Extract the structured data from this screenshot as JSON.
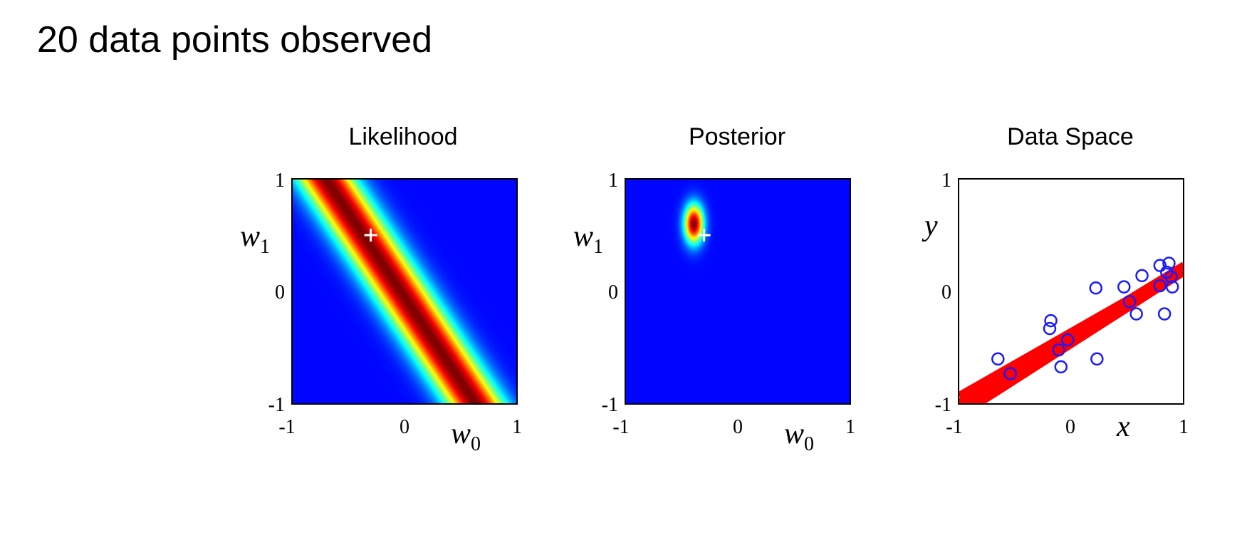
{
  "slide": {
    "title": "20 data points observed"
  },
  "colors": {
    "background_low": "#0000a8",
    "peak": "#800000",
    "marker": "#ffffff",
    "line": "#ff0000",
    "points": "#1a1aff"
  },
  "chart_data": [
    {
      "type": "heatmap",
      "title": "Likelihood",
      "xlabel": "w",
      "xlabel_sub": "0",
      "ylabel": "w",
      "ylabel_sub": "1",
      "xlim": [
        -1,
        1
      ],
      "ylim": [
        -1,
        1
      ],
      "xticks": [
        "-1",
        "0",
        "1"
      ],
      "yticks": [
        "-1",
        "0",
        "1"
      ],
      "ridge": {
        "slope": -1.5,
        "intercept": -0.05,
        "width": 0.15
      },
      "marker": {
        "x": -0.3,
        "y": 0.5,
        "symbol": "+"
      }
    },
    {
      "type": "heatmap",
      "title": "Posterior",
      "xlabel": "w",
      "xlabel_sub": "0",
      "ylabel": "w",
      "ylabel_sub": "1",
      "xlim": [
        -1,
        1
      ],
      "ylim": [
        -1,
        1
      ],
      "xticks": [
        "-1",
        "0",
        "1"
      ],
      "yticks": [
        "-1",
        "0",
        "1"
      ],
      "peak": {
        "x": -0.39,
        "y": 0.6,
        "sx": 0.06,
        "sy": 0.12
      },
      "marker": {
        "x": -0.3,
        "y": 0.5,
        "symbol": "+"
      }
    },
    {
      "type": "scatter",
      "title": "Data Space",
      "xlabel": "x",
      "ylabel": "y",
      "xlim": [
        -1,
        1
      ],
      "ylim": [
        -1,
        1
      ],
      "xticks": [
        "-1",
        "0",
        "1"
      ],
      "yticks": [
        "-1",
        "0",
        "1"
      ],
      "lines": [
        {
          "x": [
            -1,
            1
          ],
          "y": [
            -0.92,
            0.22
          ]
        },
        {
          "x": [
            -1,
            1
          ],
          "y": [
            -1.06,
            0.2
          ]
        },
        {
          "x": [
            -1,
            1
          ],
          "y": [
            -1.12,
            0.16
          ]
        },
        {
          "x": [
            -1,
            1
          ],
          "y": [
            -0.98,
            0.24
          ]
        },
        {
          "x": [
            -1,
            1
          ],
          "y": [
            -1.02,
            0.18
          ]
        }
      ],
      "points": [
        {
          "x": -0.65,
          "y": -0.6
        },
        {
          "x": -0.54,
          "y": -0.73
        },
        {
          "x": -0.19,
          "y": -0.33
        },
        {
          "x": -0.18,
          "y": -0.26
        },
        {
          "x": -0.11,
          "y": -0.52
        },
        {
          "x": -0.09,
          "y": -0.67
        },
        {
          "x": -0.03,
          "y": -0.43
        },
        {
          "x": 0.22,
          "y": 0.03
        },
        {
          "x": 0.23,
          "y": -0.6
        },
        {
          "x": 0.47,
          "y": 0.04
        },
        {
          "x": 0.52,
          "y": -0.09
        },
        {
          "x": 0.58,
          "y": -0.2
        },
        {
          "x": 0.63,
          "y": 0.14
        },
        {
          "x": 0.79,
          "y": 0.05
        },
        {
          "x": 0.79,
          "y": 0.23
        },
        {
          "x": 0.83,
          "y": -0.2
        },
        {
          "x": 0.85,
          "y": 0.17
        },
        {
          "x": 0.87,
          "y": 0.25
        },
        {
          "x": 0.89,
          "y": 0.13
        },
        {
          "x": 0.9,
          "y": 0.04
        }
      ]
    }
  ]
}
